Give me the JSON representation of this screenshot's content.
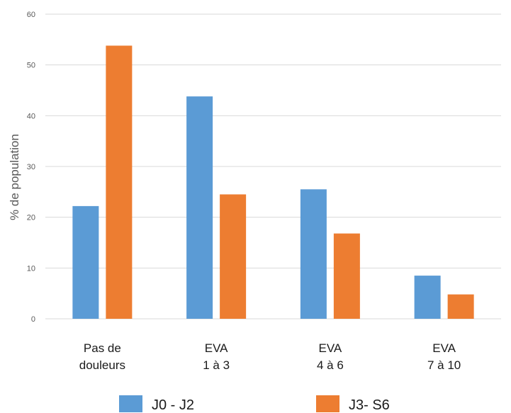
{
  "chart_data": {
    "type": "bar",
    "title": "",
    "xlabel": "",
    "ylabel": "% de population",
    "ylim": [
      0,
      60
    ],
    "yticks": [
      0,
      10,
      20,
      30,
      40,
      50,
      60
    ],
    "grid": true,
    "legend_position": "bottom",
    "categories": [
      [
        "Pas de",
        "douleurs"
      ],
      [
        "EVA",
        "1 à 3"
      ],
      [
        "EVA",
        "4 à 6"
      ],
      [
        "EVA",
        "7 à 10"
      ]
    ],
    "series": [
      {
        "name": "J0 - J2",
        "color": "#5b9bd5",
        "values": [
          22.2,
          43.8,
          25.5,
          8.5
        ]
      },
      {
        "name": "J3- S6",
        "color": "#ed7d31",
        "values": [
          53.8,
          24.5,
          16.8,
          4.8
        ]
      }
    ]
  }
}
